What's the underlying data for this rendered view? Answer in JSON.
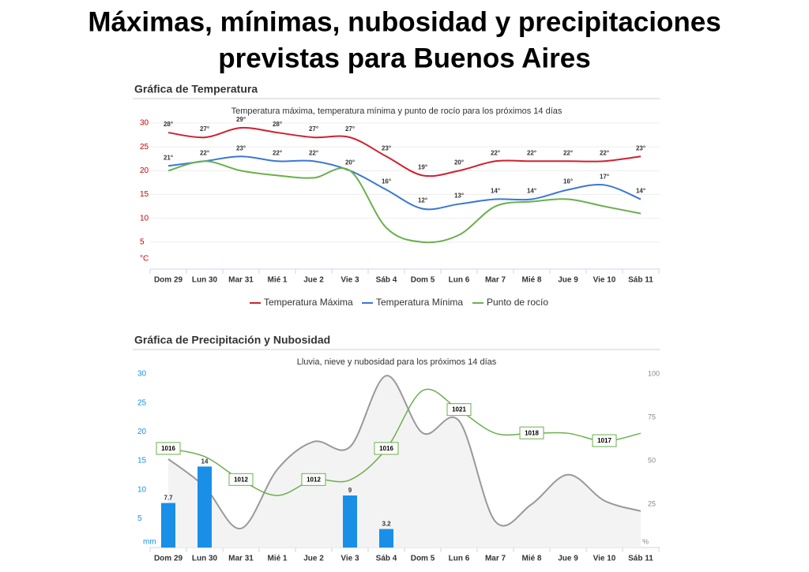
{
  "title": "Máximas, mínimas, nubosidad y precipitaciones previstas para Buenos Aires",
  "chart_data": [
    {
      "type": "line",
      "header": "Gráfica de Temperatura",
      "subtitle": "Temperatura máxima, temperatura mínima y punto de rocío para los próximos 14 días",
      "categories": [
        "Dom 29",
        "Lun 30",
        "Mar 31",
        "Mié 1",
        "Jue 2",
        "Vie 3",
        "Sáb 4",
        "Dom 5",
        "Lun 6",
        "Mar 7",
        "Mié 8",
        "Jue 9",
        "Vie 10",
        "Sáb 11"
      ],
      "ylim": [
        0,
        30
      ],
      "yticks": [
        {
          "value": 0,
          "label": "°C"
        },
        5,
        10,
        15,
        20,
        25,
        30
      ],
      "grid": true,
      "series": [
        {
          "name": "Temperatura Máxima",
          "color": "#d0202e",
          "values": [
            28,
            27,
            29,
            28,
            27,
            27,
            23,
            19,
            20,
            22,
            22,
            22,
            22,
            23
          ],
          "value_labels": [
            "28°",
            "27°",
            "29°",
            "28°",
            "27°",
            "27°",
            "23°",
            "19°",
            "20°",
            "22°",
            "22°",
            "22°",
            "22°",
            "23°"
          ]
        },
        {
          "name": "Temperatura Mínima",
          "color": "#3a78d4",
          "values": [
            21,
            22,
            23,
            22,
            22,
            20,
            16,
            12,
            13,
            14,
            14,
            16,
            17,
            14
          ],
          "value_labels": [
            "21°",
            "22°",
            "23°",
            "22°",
            "22°",
            "20°",
            "16°",
            "12°",
            "13°",
            "14°",
            "14°",
            "16°",
            "17°",
            "14°"
          ]
        },
        {
          "name": "Punto de rocío",
          "color": "#6ab04c",
          "values": [
            20,
            22,
            20,
            19,
            18.5,
            20,
            8,
            5,
            6.5,
            12.5,
            13.5,
            14,
            12.5,
            11
          ]
        }
      ]
    },
    {
      "type": "combo",
      "header": "Gráfica de Precipitación y Nubosidad",
      "subtitle": "Lluvia, nieve y nubosidad para los próximos 14 días",
      "categories": [
        "Dom 29",
        "Lun 30",
        "Mar 31",
        "Mié 1",
        "Jue 2",
        "Vie 3",
        "Sáb 4",
        "Dom 5",
        "Lun 6",
        "Mar 7",
        "Mié 8",
        "Jue 9",
        "Vie 10",
        "Sáb 11"
      ],
      "ylim": [
        0,
        30
      ],
      "yticks": [
        {
          "value": 0,
          "label": "mm"
        },
        5,
        10,
        15,
        20,
        25,
        30
      ],
      "y2lim": [
        0,
        100
      ],
      "y2ticks": [
        {
          "value": 0,
          "label": "%"
        },
        25,
        50,
        75,
        100
      ],
      "series": [
        {
          "kind": "area",
          "axis": "y2",
          "color": "#999999",
          "values": [
            51,
            35,
            11,
            45,
            61,
            58,
            99,
            66,
            73,
            15,
            25,
            42,
            27,
            21
          ]
        },
        {
          "kind": "bar",
          "color": "#1a8fe8",
          "values": [
            7.7,
            14,
            null,
            null,
            null,
            9,
            3.2,
            null,
            null,
            null,
            null,
            null,
            null,
            null
          ]
        },
        {
          "kind": "line",
          "axis": "pressure",
          "color": "#6ab04c",
          "values": [
            1016,
            1015,
            1012,
            1010,
            1012,
            1012,
            1016,
            1023.5,
            1021,
            1018,
            1018,
            1018,
            1017,
            1018
          ],
          "value_labels": [
            "1016",
            null,
            "1012",
            null,
            "1012",
            null,
            "1016",
            null,
            "1021",
            null,
            "1018",
            null,
            "1017",
            null
          ]
        }
      ]
    }
  ]
}
